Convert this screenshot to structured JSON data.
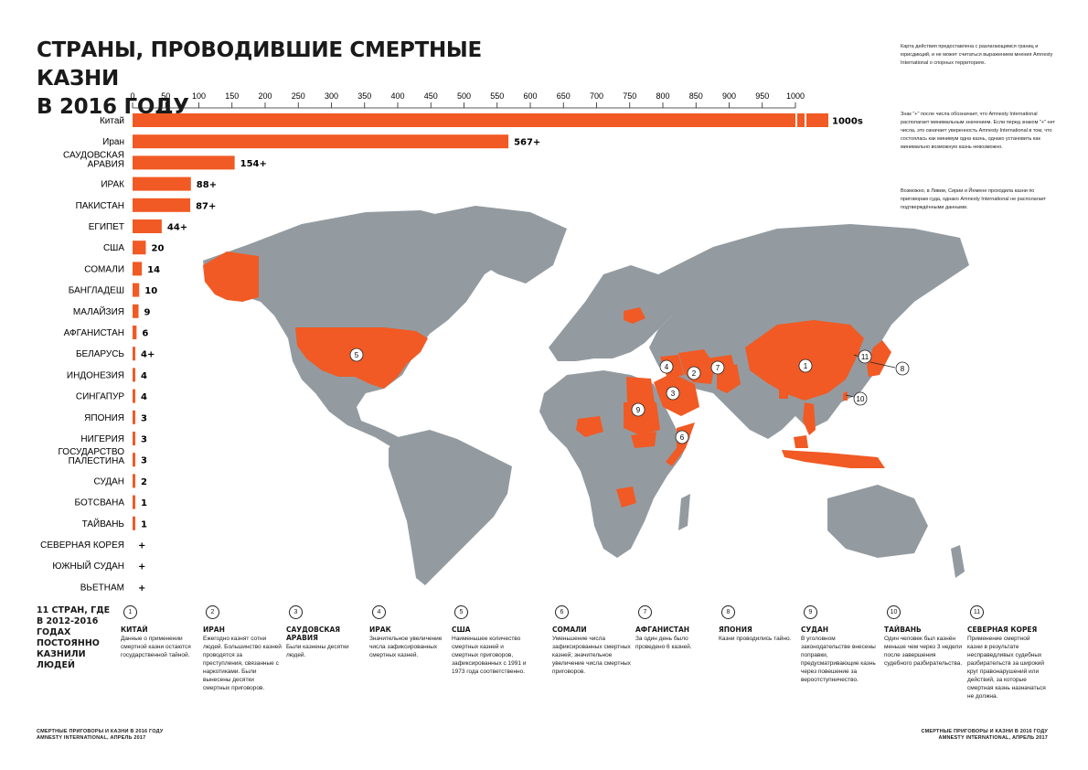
{
  "title_line1": "СТРАНЫ, ПРОВОДИВШИЕ СМЕРТНЫЕ КАЗНИ",
  "title_line2": "В 2016 ГОДУ",
  "notes": [
    "Карта действия предоставлена с разлагающимся границ и юрисдикций, и не может считаться выражением мнения Amnesty International о спорных территориях.",
    "Знак \"+\" после числа обозначает, что Amnesty International располагает минимальным значением. Если перед знаком \"+\" нет числа, это означает уверенность Amnesty International в том, что состоялась как минимум одна казнь, однако установить как минимально возможную казнь невозможно.",
    "Возможно, в Ливии, Сирии и Йемене проходила казни по приговорам суда, однако Amnesty International не располагает подтверждёнными данными."
  ],
  "chart_data": {
    "type": "bar",
    "orientation": "horizontal",
    "title": "СТРАНЫ, ПРОВОДИВШИЕ СМЕРТНЫЕ КАЗНИ В 2016 ГОДУ",
    "xlim": [
      0,
      1000
    ],
    "ticks": [
      0,
      50,
      100,
      150,
      200,
      250,
      300,
      350,
      400,
      450,
      500,
      550,
      600,
      650,
      700,
      750,
      800,
      850,
      900,
      950,
      1000
    ],
    "bar_color": "#f15a24",
    "categories": [
      "Китай",
      "Иран",
      "САУДОВСКАЯ АРАВИЯ",
      "ИРАК",
      "ПАКИСТАН",
      "ЕГИПЕТ",
      "США",
      "СОМАЛИ",
      "БАНГЛАДЕШ",
      "МАЛАЙЗИЯ",
      "АФГАНИСТАН",
      "БЕЛАРУСЬ",
      "ИНДОНЕЗИЯ",
      "СИНГАПУР",
      "ЯПОНИЯ",
      "НИГЕРИЯ",
      "ГОСУДАРСТВО ПАЛЕСТИНА",
      "СУДАН",
      "БОТСВАНА",
      "ТАЙВАНЬ",
      "СЕВЕРНАЯ КОРЕЯ",
      "ЮЖНЫЙ СУДАН",
      "ВЬЕТНАМ"
    ],
    "values": [
      1000,
      567,
      154,
      88,
      87,
      44,
      20,
      14,
      10,
      9,
      6,
      4,
      4,
      4,
      3,
      3,
      3,
      2,
      1,
      1,
      0,
      0,
      0
    ],
    "labels": [
      "1000s",
      "567+",
      "154+",
      "88+",
      "87+",
      "44+",
      "20",
      "14",
      "10",
      "9",
      "6",
      "4+",
      "4",
      "4",
      "3",
      "3",
      "3",
      "2",
      "1",
      "1",
      "+",
      "+",
      "+"
    ]
  },
  "map": {
    "land_color": "#939ba1",
    "highlight_color": "#f15a24",
    "markers": [
      {
        "n": "1"
      },
      {
        "n": "2"
      },
      {
        "n": "3"
      },
      {
        "n": "4"
      },
      {
        "n": "5"
      },
      {
        "n": "6"
      },
      {
        "n": "7"
      },
      {
        "n": "8"
      },
      {
        "n": "9"
      },
      {
        "n": "10"
      },
      {
        "n": "11"
      }
    ]
  },
  "legend": {
    "heading": "11 СТРАН, ГДЕ В 2012-2016 ГОДАХ ПОСТОЯННО КАЗНИЛИ ЛЮДЕЙ",
    "items": [
      {
        "n": "1",
        "name": "КИТАЙ",
        "desc": "Данные о применении смертной казни остаются государственной тайной."
      },
      {
        "n": "2",
        "name": "ИРАН",
        "desc": "Ежегодно казнят сотни людей. Большинство казней проводятся за преступления, связанные с наркотиками. Были вынесены десятки смертных приговоров."
      },
      {
        "n": "3",
        "name": "САУДОВСКАЯ АРАВИЯ",
        "desc": "Были казнены десятки людей."
      },
      {
        "n": "4",
        "name": "ИРАК",
        "desc": "Значительное увеличение числа зафиксированных смертных казней."
      },
      {
        "n": "5",
        "name": "США",
        "desc": "Наименьшее количество смертных казней и смертных приговоров, зафиксированных с 1991 и 1973 года соответственно."
      },
      {
        "n": "6",
        "name": "СОМАЛИ",
        "desc": "Уменьшение числа зафиксированных смертных казней; значительное увеличение числа смертных приговоров."
      },
      {
        "n": "7",
        "name": "АФГАНИСТАН",
        "desc": "За один день было проведено 6 казней."
      },
      {
        "n": "8",
        "name": "ЯПОНИЯ",
        "desc": "Казни проводились тайно."
      },
      {
        "n": "9",
        "name": "СУДАН",
        "desc": "В уголовном законодательстве внесены поправки, предусматривающие казнь через повешение за вероотступничество."
      },
      {
        "n": "10",
        "name": "ТАЙВАНЬ",
        "desc": "Один человек был казнён меньше чем через 3 недели после завершения судебного разбирательства."
      },
      {
        "n": "11",
        "name": "СЕВЕРНАЯ КОРЕЯ",
        "desc": "Применение смертной казни в результате несправедливых судебных разбирательств за широкий круг правонарушений или действий, за которые смертная казнь назначаться не должна."
      }
    ]
  },
  "footer_left": [
    "СМЕРТНЫЕ ПРИГОВОРЫ И КАЗНИ В 2016 ГОДУ",
    "AMNESTY INTERNATIONAL, АПРЕЛЬ 2017"
  ],
  "footer_right": [
    "СМЕРТНЫЕ ПРИГОВОРЫ И КАЗНИ В 2016 ГОДУ",
    "AMNESTY INTERNATIONAL, АПРЕЛЬ 2017"
  ]
}
